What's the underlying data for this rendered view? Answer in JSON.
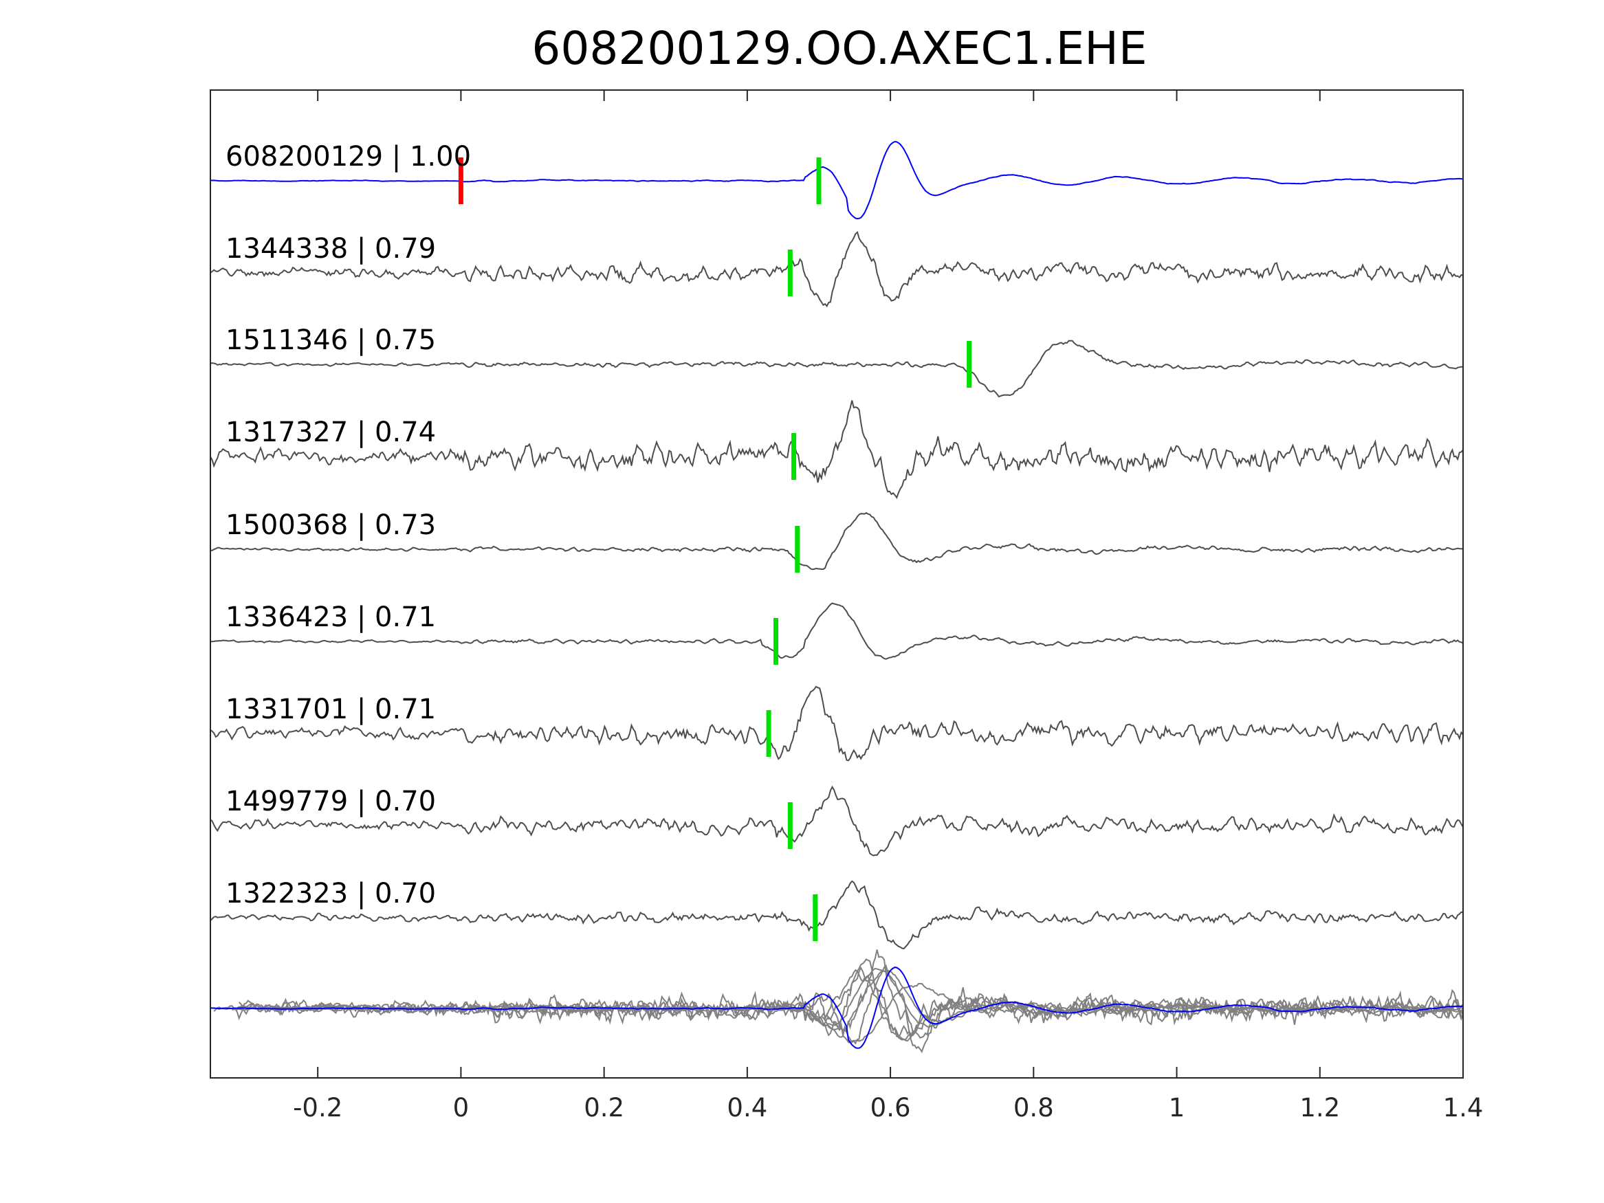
{
  "chart_data": {
    "type": "line",
    "title": "608200129.OO.AXEC1.EHE",
    "xlabel": "",
    "ylabel": "",
    "xlim": [
      -0.35,
      1.4
    ],
    "xticks": [
      -0.2,
      0,
      0.2,
      0.4,
      0.6,
      0.8,
      1,
      1.2,
      1.4
    ],
    "xtick_labels": [
      "-0.2",
      "0",
      "0.2",
      "0.4",
      "0.6",
      "0.8",
      "1",
      "1.2",
      "1.4"
    ],
    "grid": false,
    "legend": "none",
    "colors": {
      "template": "#0000ff",
      "match": "#4d4d4d",
      "stack": "#808080",
      "origin_pick": "#ff0000",
      "phase_pick": "#00e000"
    },
    "origin_pick": 0.0,
    "series": [
      {
        "id": "608200129",
        "label": "608200129 | 1.00",
        "cc": 1.0,
        "pick": 0.5,
        "role": "template"
      },
      {
        "id": "1344338",
        "label": "1344338 | 0.79",
        "cc": 0.79,
        "pick": 0.46
      },
      {
        "id": "1511346",
        "label": "1511346 | 0.75",
        "cc": 0.75,
        "pick": 0.71
      },
      {
        "id": "1317327",
        "label": "1317327 | 0.74",
        "cc": 0.74,
        "pick": 0.465
      },
      {
        "id": "1500368",
        "label": "1500368 | 0.73",
        "cc": 0.73,
        "pick": 0.47
      },
      {
        "id": "1336423",
        "label": "1336423 | 0.71",
        "cc": 0.71,
        "pick": 0.44
      },
      {
        "id": "1331701",
        "label": "1331701 | 0.71",
        "cc": 0.71,
        "pick": 0.43
      },
      {
        "id": "1499779",
        "label": "1499779 | 0.70",
        "cc": 0.7,
        "pick": 0.46
      },
      {
        "id": "1322323",
        "label": "1322323 | 0.70",
        "cc": 0.7,
        "pick": 0.495
      }
    ]
  }
}
